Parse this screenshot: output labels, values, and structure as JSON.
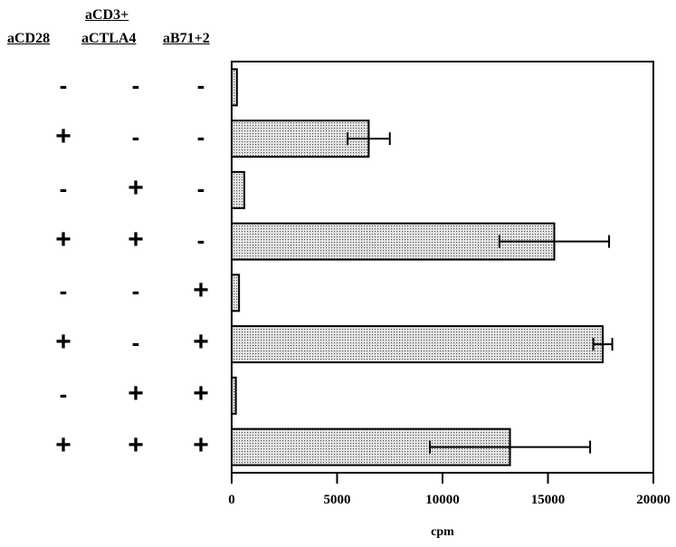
{
  "chart_data": {
    "type": "bar",
    "orientation": "horizontal",
    "header_title": "aCD3+",
    "columns": [
      "aCD28",
      "aCTLA4",
      "aB71+2"
    ],
    "conditions": [
      [
        "-",
        "-",
        "-"
      ],
      [
        "+",
        "-",
        "-"
      ],
      [
        "-",
        "+",
        "-"
      ],
      [
        "+",
        "+",
        "-"
      ],
      [
        "-",
        "-",
        "+"
      ],
      [
        "+",
        "-",
        "+"
      ],
      [
        "-",
        "+",
        "+"
      ],
      [
        "+",
        "+",
        "+"
      ]
    ],
    "values": [
      250,
      6500,
      600,
      15300,
      350,
      17600,
      200,
      13200
    ],
    "errors": [
      0,
      1000,
      0,
      2600,
      0,
      450,
      0,
      3800
    ],
    "xlabel": "cpm",
    "ylabel": "",
    "xlim": [
      0,
      20000
    ],
    "xticks": [
      "0",
      "5000",
      "10000",
      "15000",
      "20000"
    ],
    "grid": false,
    "legend": "none",
    "colors": {
      "bar_fill": "#e6e6e6",
      "bar_dots": "#555555",
      "stroke": "#000000"
    }
  }
}
